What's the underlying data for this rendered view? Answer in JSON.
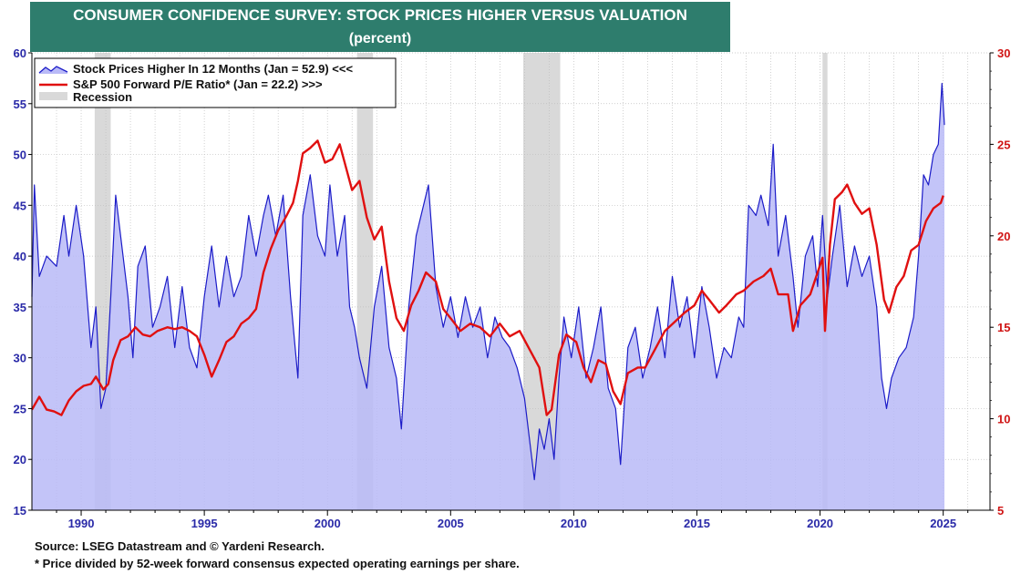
{
  "title": "CONSUMER CONFIDENCE SURVEY: STOCK PRICES HIGHER VERSUS VALUATION",
  "subtitle": "(percent)",
  "source": "Source: LSEG Datastream and © Yardeni Research.",
  "footnote": "* Price divided by 52-week forward consensus expected operating earnings per share.",
  "colors": {
    "title_bg": "#2e7d6d",
    "stock_line": "#1c1cc8",
    "stock_fill": "#b9baf7",
    "pe_line": "#e01010",
    "recession": "#d9d9d9",
    "left_axis": "#2a2aa8",
    "right_axis": "#d01515"
  },
  "chart_data": {
    "type": "line",
    "x_range": [
      1988.0,
      2026.9
    ],
    "x_ticks": [
      1990,
      1995,
      2000,
      2005,
      2010,
      2015,
      2020,
      2025
    ],
    "left_axis": {
      "range": [
        15,
        60
      ],
      "ticks": [
        15,
        20,
        25,
        30,
        35,
        40,
        45,
        50,
        55,
        60
      ]
    },
    "right_axis": {
      "range": [
        5,
        30
      ],
      "ticks": [
        5,
        10,
        15,
        20,
        25,
        30
      ]
    },
    "legend": {
      "placement": "top-left"
    },
    "recessions": [
      [
        1990.55,
        1991.2
      ],
      [
        2001.2,
        2001.85
      ],
      [
        2007.95,
        2009.45
      ],
      [
        2020.1,
        2020.3
      ]
    ],
    "series": [
      {
        "name": "Stock Prices Higher In 12 Months (Jan = 52.9) <<<",
        "axis": "left",
        "style": "filled-line",
        "points": [
          [
            1988.0,
            36
          ],
          [
            1988.1,
            47
          ],
          [
            1988.3,
            38
          ],
          [
            1988.6,
            40
          ],
          [
            1989.0,
            39
          ],
          [
            1989.3,
            44
          ],
          [
            1989.5,
            40
          ],
          [
            1989.8,
            45
          ],
          [
            1990.1,
            40
          ],
          [
            1990.4,
            31
          ],
          [
            1990.6,
            35
          ],
          [
            1990.8,
            25
          ],
          [
            1991.0,
            27
          ],
          [
            1991.2,
            36
          ],
          [
            1991.4,
            46
          ],
          [
            1991.6,
            42
          ],
          [
            1991.9,
            36
          ],
          [
            1992.1,
            30
          ],
          [
            1992.3,
            39
          ],
          [
            1992.6,
            41
          ],
          [
            1992.9,
            33
          ],
          [
            1993.2,
            35
          ],
          [
            1993.5,
            38
          ],
          [
            1993.8,
            31
          ],
          [
            1994.1,
            37
          ],
          [
            1994.4,
            31
          ],
          [
            1994.7,
            29
          ],
          [
            1995.0,
            36
          ],
          [
            1995.3,
            41
          ],
          [
            1995.6,
            35
          ],
          [
            1995.9,
            40
          ],
          [
            1996.2,
            36
          ],
          [
            1996.5,
            38
          ],
          [
            1996.8,
            44
          ],
          [
            1997.1,
            40
          ],
          [
            1997.4,
            44
          ],
          [
            1997.6,
            46
          ],
          [
            1997.9,
            42
          ],
          [
            1998.2,
            46
          ],
          [
            1998.5,
            36
          ],
          [
            1998.8,
            28
          ],
          [
            1999.0,
            44
          ],
          [
            1999.3,
            48
          ],
          [
            1999.6,
            42
          ],
          [
            1999.9,
            40
          ],
          [
            2000.1,
            47
          ],
          [
            2000.4,
            40
          ],
          [
            2000.7,
            44
          ],
          [
            2000.9,
            35
          ],
          [
            2001.1,
            33
          ],
          [
            2001.3,
            30
          ],
          [
            2001.6,
            27
          ],
          [
            2001.9,
            35
          ],
          [
            2002.2,
            39
          ],
          [
            2002.5,
            31
          ],
          [
            2002.8,
            28
          ],
          [
            2003.0,
            23
          ],
          [
            2003.3,
            35
          ],
          [
            2003.6,
            42
          ],
          [
            2003.9,
            45
          ],
          [
            2004.1,
            47
          ],
          [
            2004.4,
            37
          ],
          [
            2004.7,
            33
          ],
          [
            2005.0,
            36
          ],
          [
            2005.3,
            32
          ],
          [
            2005.6,
            36
          ],
          [
            2005.9,
            33
          ],
          [
            2006.2,
            35
          ],
          [
            2006.5,
            30
          ],
          [
            2006.8,
            34
          ],
          [
            2007.1,
            32
          ],
          [
            2007.4,
            31
          ],
          [
            2007.7,
            29
          ],
          [
            2008.0,
            26
          ],
          [
            2008.2,
            22
          ],
          [
            2008.4,
            18
          ],
          [
            2008.6,
            23
          ],
          [
            2008.8,
            21
          ],
          [
            2009.0,
            24
          ],
          [
            2009.2,
            20
          ],
          [
            2009.4,
            28
          ],
          [
            2009.6,
            34
          ],
          [
            2009.9,
            30
          ],
          [
            2010.2,
            35
          ],
          [
            2010.5,
            28
          ],
          [
            2010.8,
            31
          ],
          [
            2011.1,
            35
          ],
          [
            2011.4,
            27
          ],
          [
            2011.7,
            25
          ],
          [
            2011.9,
            19.5
          ],
          [
            2012.2,
            31
          ],
          [
            2012.5,
            33
          ],
          [
            2012.8,
            28
          ],
          [
            2013.1,
            31
          ],
          [
            2013.4,
            35
          ],
          [
            2013.7,
            30
          ],
          [
            2014.0,
            38
          ],
          [
            2014.3,
            33
          ],
          [
            2014.6,
            36
          ],
          [
            2014.9,
            30
          ],
          [
            2015.2,
            37
          ],
          [
            2015.5,
            33
          ],
          [
            2015.8,
            28
          ],
          [
            2016.1,
            31
          ],
          [
            2016.4,
            30
          ],
          [
            2016.7,
            34
          ],
          [
            2016.9,
            33
          ],
          [
            2017.1,
            45
          ],
          [
            2017.4,
            44
          ],
          [
            2017.6,
            46
          ],
          [
            2017.9,
            43
          ],
          [
            2018.1,
            51
          ],
          [
            2018.3,
            40
          ],
          [
            2018.6,
            44
          ],
          [
            2018.9,
            38
          ],
          [
            2019.1,
            33
          ],
          [
            2019.4,
            40
          ],
          [
            2019.7,
            42
          ],
          [
            2019.9,
            37
          ],
          [
            2020.1,
            44
          ],
          [
            2020.3,
            36
          ],
          [
            2020.5,
            40
          ],
          [
            2020.8,
            45
          ],
          [
            2021.1,
            37
          ],
          [
            2021.4,
            41
          ],
          [
            2021.7,
            38
          ],
          [
            2022.0,
            40
          ],
          [
            2022.3,
            35
          ],
          [
            2022.5,
            28
          ],
          [
            2022.7,
            25
          ],
          [
            2022.9,
            28
          ],
          [
            2023.2,
            30
          ],
          [
            2023.5,
            31
          ],
          [
            2023.8,
            34
          ],
          [
            2024.0,
            40
          ],
          [
            2024.2,
            48
          ],
          [
            2024.4,
            47
          ],
          [
            2024.6,
            50
          ],
          [
            2024.8,
            51
          ],
          [
            2024.95,
            57
          ],
          [
            2025.05,
            52.9
          ]
        ]
      },
      {
        "name": "S&P 500 Forward P/E Ratio* (Jan = 22.2) >>>",
        "axis": "right",
        "style": "line",
        "points": [
          [
            1988.0,
            10.5
          ],
          [
            1988.3,
            11.2
          ],
          [
            1988.6,
            10.5
          ],
          [
            1988.9,
            10.4
          ],
          [
            1989.2,
            10.2
          ],
          [
            1989.5,
            11.0
          ],
          [
            1989.8,
            11.5
          ],
          [
            1990.1,
            11.8
          ],
          [
            1990.4,
            11.9
          ],
          [
            1990.6,
            12.3
          ],
          [
            1990.9,
            11.6
          ],
          [
            1991.1,
            11.9
          ],
          [
            1991.3,
            13.2
          ],
          [
            1991.6,
            14.3
          ],
          [
            1991.9,
            14.5
          ],
          [
            1992.2,
            15.0
          ],
          [
            1992.5,
            14.6
          ],
          [
            1992.8,
            14.5
          ],
          [
            1993.1,
            14.8
          ],
          [
            1993.5,
            15.0
          ],
          [
            1993.8,
            14.9
          ],
          [
            1994.1,
            15.0
          ],
          [
            1994.4,
            14.8
          ],
          [
            1994.7,
            14.5
          ],
          [
            1995.0,
            13.5
          ],
          [
            1995.3,
            12.3
          ],
          [
            1995.6,
            13.2
          ],
          [
            1995.9,
            14.2
          ],
          [
            1996.2,
            14.5
          ],
          [
            1996.5,
            15.2
          ],
          [
            1996.8,
            15.5
          ],
          [
            1997.1,
            16.0
          ],
          [
            1997.4,
            18.0
          ],
          [
            1997.7,
            19.3
          ],
          [
            1998.0,
            20.3
          ],
          [
            1998.3,
            21.0
          ],
          [
            1998.6,
            21.8
          ],
          [
            1998.8,
            23.0
          ],
          [
            1999.0,
            24.5
          ],
          [
            1999.3,
            24.8
          ],
          [
            1999.6,
            25.2
          ],
          [
            1999.9,
            24.0
          ],
          [
            2000.2,
            24.2
          ],
          [
            2000.5,
            25.0
          ],
          [
            2000.8,
            23.5
          ],
          [
            2001.0,
            22.5
          ],
          [
            2001.3,
            23.0
          ],
          [
            2001.6,
            21.0
          ],
          [
            2001.9,
            19.8
          ],
          [
            2002.2,
            20.5
          ],
          [
            2002.5,
            17.5
          ],
          [
            2002.8,
            15.5
          ],
          [
            2003.1,
            14.8
          ],
          [
            2003.4,
            16.2
          ],
          [
            2003.7,
            17.0
          ],
          [
            2004.0,
            18.0
          ],
          [
            2004.4,
            17.5
          ],
          [
            2004.7,
            16.0
          ],
          [
            2005.0,
            15.5
          ],
          [
            2005.4,
            14.8
          ],
          [
            2005.8,
            15.2
          ],
          [
            2006.2,
            15.0
          ],
          [
            2006.6,
            14.5
          ],
          [
            2007.0,
            15.2
          ],
          [
            2007.4,
            14.5
          ],
          [
            2007.8,
            14.8
          ],
          [
            2008.2,
            13.8
          ],
          [
            2008.6,
            12.8
          ],
          [
            2008.9,
            10.2
          ],
          [
            2009.1,
            10.5
          ],
          [
            2009.4,
            13.5
          ],
          [
            2009.7,
            14.6
          ],
          [
            2010.1,
            14.2
          ],
          [
            2010.4,
            12.8
          ],
          [
            2010.7,
            12.0
          ],
          [
            2011.0,
            13.2
          ],
          [
            2011.3,
            13.0
          ],
          [
            2011.6,
            11.5
          ],
          [
            2011.9,
            10.8
          ],
          [
            2012.2,
            12.5
          ],
          [
            2012.6,
            12.8
          ],
          [
            2012.9,
            12.8
          ],
          [
            2013.3,
            13.8
          ],
          [
            2013.7,
            14.8
          ],
          [
            2014.1,
            15.3
          ],
          [
            2014.5,
            15.8
          ],
          [
            2014.9,
            16.2
          ],
          [
            2015.2,
            17.0
          ],
          [
            2015.5,
            16.5
          ],
          [
            2015.9,
            15.8
          ],
          [
            2016.2,
            16.2
          ],
          [
            2016.6,
            16.8
          ],
          [
            2016.9,
            17.0
          ],
          [
            2017.3,
            17.5
          ],
          [
            2017.7,
            17.8
          ],
          [
            2018.0,
            18.2
          ],
          [
            2018.3,
            16.8
          ],
          [
            2018.7,
            16.8
          ],
          [
            2018.9,
            14.8
          ],
          [
            2019.2,
            16.2
          ],
          [
            2019.6,
            16.8
          ],
          [
            2019.9,
            18.0
          ],
          [
            2020.1,
            18.8
          ],
          [
            2020.2,
            14.8
          ],
          [
            2020.4,
            19.5
          ],
          [
            2020.6,
            22.0
          ],
          [
            2020.9,
            22.4
          ],
          [
            2021.1,
            22.8
          ],
          [
            2021.4,
            21.8
          ],
          [
            2021.7,
            21.2
          ],
          [
            2022.0,
            21.5
          ],
          [
            2022.3,
            19.5
          ],
          [
            2022.6,
            16.5
          ],
          [
            2022.8,
            15.8
          ],
          [
            2023.1,
            17.2
          ],
          [
            2023.4,
            17.8
          ],
          [
            2023.7,
            19.2
          ],
          [
            2024.0,
            19.5
          ],
          [
            2024.3,
            20.8
          ],
          [
            2024.6,
            21.5
          ],
          [
            2024.9,
            21.8
          ],
          [
            2025.0,
            22.2
          ]
        ]
      },
      {
        "name": "Recession",
        "style": "band"
      }
    ]
  }
}
